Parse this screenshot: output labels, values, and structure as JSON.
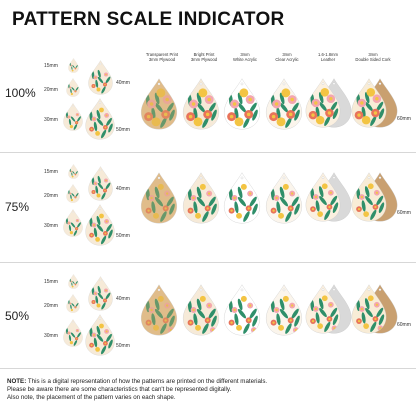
{
  "title": "PATTERN SCALE INDICATOR",
  "columns": [
    {
      "line1": "Transparent Print",
      "line2": "3mm Plywood"
    },
    {
      "line1": "Bright Print",
      "line2": "3mm Plywood"
    },
    {
      "line1": "3mm",
      "line2": "White Acrylic"
    },
    {
      "line1": "3mm",
      "line2": "Clear Acrylic"
    },
    {
      "line1": "1.6-1.8mm",
      "line2": "Leather"
    },
    {
      "line1": "3mm",
      "line2": "Double Sided Cork"
    }
  ],
  "rows": [
    {
      "percent": "100%",
      "sizes": [
        "15mm",
        "20mm",
        "30mm",
        "40mm",
        "50mm"
      ],
      "big_label": "60mm"
    },
    {
      "percent": "75%",
      "sizes": [
        "15mm",
        "20mm",
        "30mm",
        "40mm",
        "50mm"
      ],
      "big_label": "60mm"
    },
    {
      "percent": "50%",
      "sizes": [
        "15mm",
        "20mm",
        "30mm",
        "40mm",
        "50mm"
      ],
      "big_label": "60mm"
    }
  ],
  "note": {
    "label": "NOTE:",
    "line1": " This is a digital representation of how the patterns are printed on the different materials.",
    "line2": "Please be aware there are some characteristics that can't be represented digitally.",
    "line3": "Also note, the placement of the pattern varies on each shape."
  },
  "colors": {
    "accent": "#e8735a",
    "leaf": "#2f8f6a",
    "pink": "#f4a6b0",
    "yellow": "#f3c443",
    "cream": "#f6ead8",
    "cork": "#c9a070"
  }
}
